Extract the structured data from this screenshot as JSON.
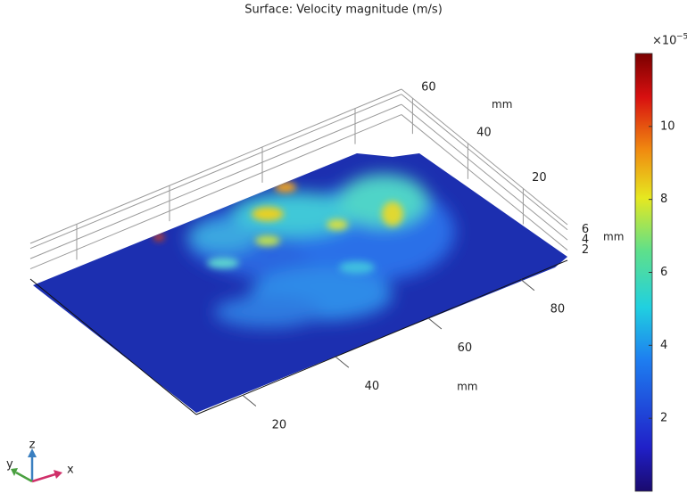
{
  "chart_data": {
    "type": "surface3d",
    "title": "Surface: Velocity magnitude (m/s)",
    "xlabel": "mm",
    "ylabel": "mm",
    "zlabel": "mm",
    "xlim": [
      10,
      90
    ],
    "xticks": [
      20,
      40,
      60,
      80
    ],
    "ylim": [
      4,
      64
    ],
    "yticks": [
      20,
      40,
      60
    ],
    "zlim": [
      0,
      7
    ],
    "zticks": [
      2,
      4,
      6
    ],
    "colorbar": {
      "lim": [
        0,
        12
      ],
      "ticks": [
        2,
        4,
        6,
        8,
        10
      ],
      "multiplier": "×10",
      "exponent": "−5"
    },
    "triad": {
      "x": "x",
      "y": "y",
      "z": "z"
    }
  }
}
